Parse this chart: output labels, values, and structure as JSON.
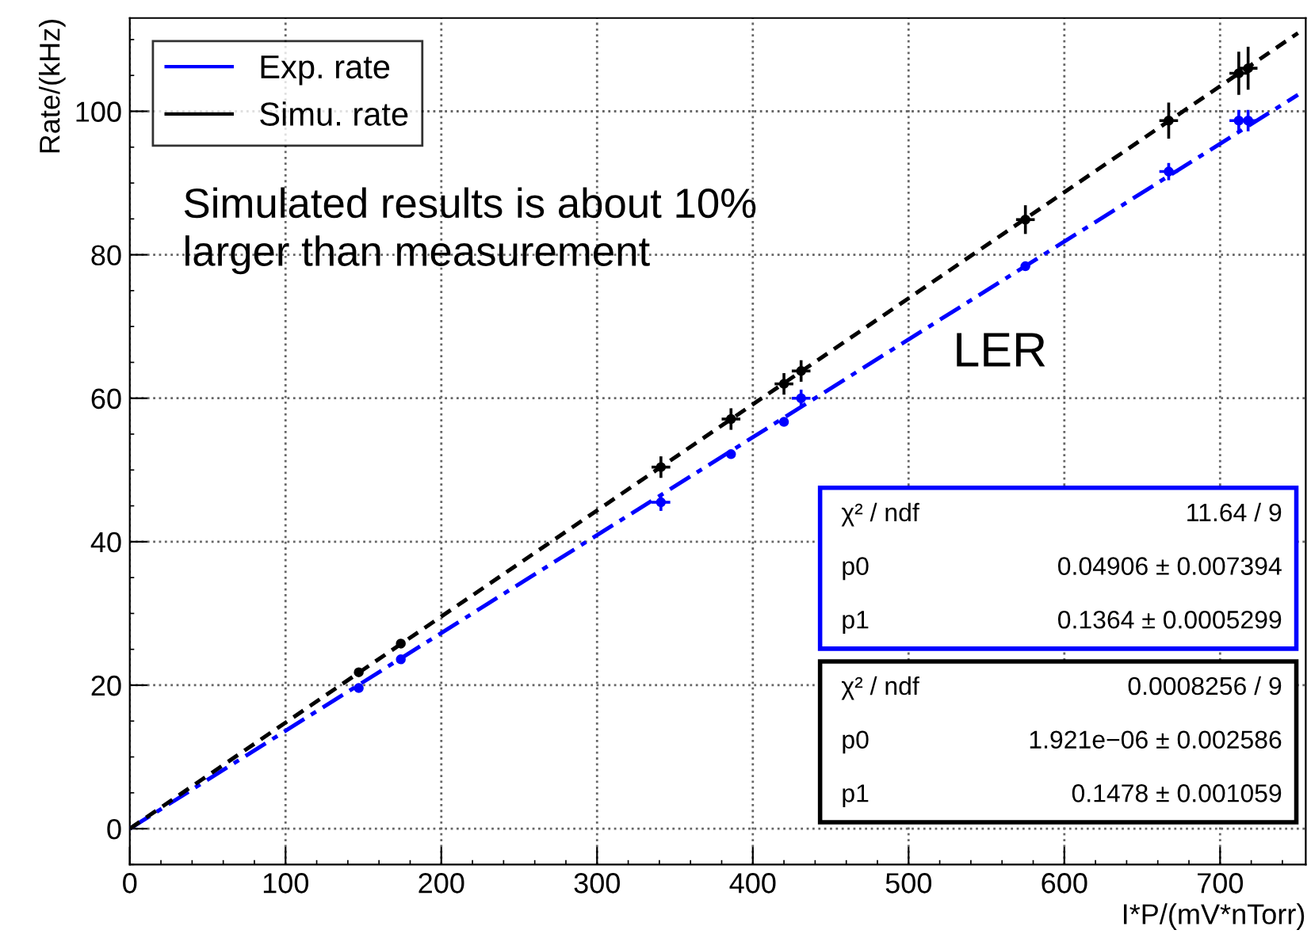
{
  "chart_data": {
    "type": "scatter",
    "xlabel": "I*P/(mV*nTorr)",
    "ylabel": "Rate/(kHz)",
    "xlim": [
      0,
      755
    ],
    "ylim": [
      -5,
      113
    ],
    "xticks": [
      0,
      100,
      200,
      300,
      400,
      500,
      600,
      700
    ],
    "yticks": [
      0,
      20,
      40,
      60,
      80,
      100
    ],
    "grid": true,
    "legend": "top left",
    "series": [
      {
        "name": "Exp. rate",
        "color": "#0000ff",
        "marker": "circle",
        "x": [
          147,
          174,
          341,
          386,
          420,
          431,
          575,
          667,
          712,
          718
        ],
        "values": [
          19.6,
          23.6,
          45.5,
          52.2,
          56.7,
          60.0,
          78.4,
          91.6,
          98.7,
          98.7
        ],
        "errors": [
          null,
          null,
          1.2,
          null,
          null,
          1.2,
          null,
          1.2,
          1.5,
          1.5
        ],
        "xerrors": [
          null,
          null,
          6,
          null,
          null,
          6,
          null,
          6,
          6,
          6
        ]
      },
      {
        "name": "Simu. rate",
        "color": "#000000",
        "marker": "circle",
        "x": [
          147,
          174,
          341,
          386,
          420,
          431,
          575,
          667,
          712,
          718
        ],
        "values": [
          21.8,
          25.8,
          50.4,
          57.1,
          62.0,
          63.8,
          84.9,
          98.7,
          105.3,
          106.0
        ],
        "errors": [
          null,
          null,
          1.5,
          1.5,
          1.5,
          1.5,
          2,
          2.5,
          3,
          3
        ],
        "xerrors": [
          null,
          null,
          6,
          6,
          6,
          6,
          6,
          6,
          6,
          6
        ]
      },
      {
        "type": "line",
        "color": "#0000ff",
        "line_style": "dashdot",
        "x": [
          0,
          750
        ],
        "values": [
          0,
          102.3
        ]
      },
      {
        "type": "line",
        "color": "#000000",
        "line_style": "dashed",
        "x": [
          0,
          750
        ],
        "values": [
          0,
          110.9
        ]
      }
    ],
    "annotations": [
      "Simulated results is about 10%\nlarger than measurement",
      "LER",
      "χ² / ndf",
      "11.64 / 9",
      "p0",
      "0.04906 ± 0.007394",
      "p1",
      "0.1364 ± 0.0005299",
      "χ² / ndf",
      "0.0008256 / 9",
      "p0",
      "1.921e−06 ± 0.002586",
      "p1",
      "0.1478 ± 0.001059"
    ]
  }
}
